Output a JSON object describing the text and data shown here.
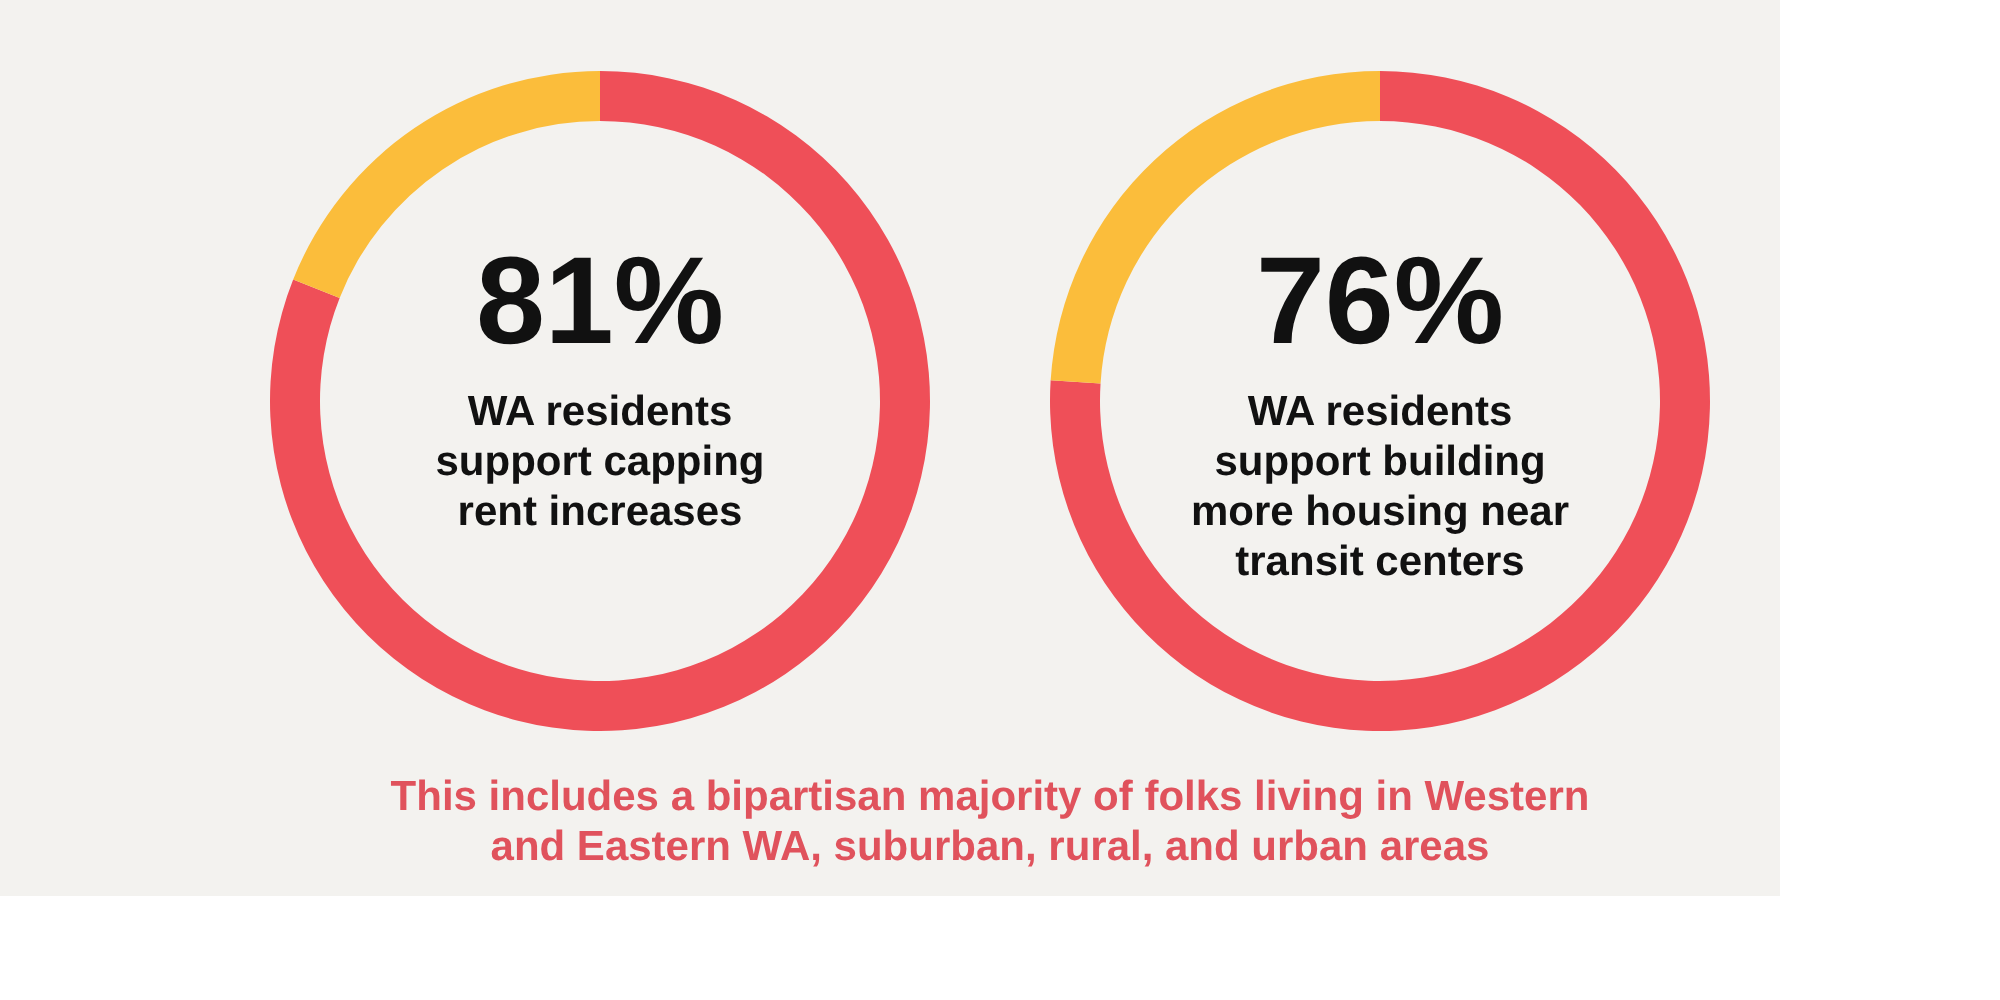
{
  "chart_data": [
    {
      "type": "donut",
      "title": "WA residents support capping rent increases",
      "categories": [
        null,
        null
      ],
      "values": [
        81,
        19
      ],
      "colors": [
        "#ef4f58",
        "#fbbd3b"
      ],
      "value_labels": [
        "81%",
        null
      ],
      "legend": false,
      "annotations": [
        "This includes a bipartisan majority of folks living in Western and Eastern WA, suburban, rural, and urban areas"
      ]
    },
    {
      "type": "donut",
      "title": "WA residents support building more housing near transit centers",
      "categories": [
        null,
        null
      ],
      "values": [
        76,
        24
      ],
      "colors": [
        "#ef4f58",
        "#fbbd3b"
      ],
      "value_labels": [
        "76%",
        null
      ],
      "legend": false
    }
  ]
}
